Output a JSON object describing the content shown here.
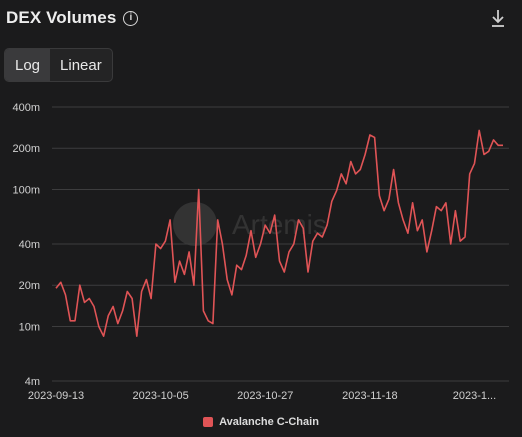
{
  "header": {
    "title": "DEX Volumes",
    "info_icon": "info-circle-icon",
    "download_icon": "download-icon"
  },
  "scale_toggle": {
    "options": [
      "Log",
      "Linear"
    ],
    "selected": "Log"
  },
  "colors": {
    "series": "#e05456",
    "background": "#1b1b1c",
    "grid": "#3d3d3e"
  },
  "chart_data": {
    "type": "line",
    "scale": "log",
    "ylim": [
      4,
      400
    ],
    "y_ticks": [
      {
        "value": 4,
        "label": "4m"
      },
      {
        "value": 10,
        "label": "10m"
      },
      {
        "value": 20,
        "label": "20m"
      },
      {
        "value": 40,
        "label": "40m"
      },
      {
        "value": 100,
        "label": "100m"
      },
      {
        "value": 200,
        "label": "200m"
      },
      {
        "value": 400,
        "label": "400m"
      }
    ],
    "x_ticks": [
      "2023-09-13",
      "2023-10-05",
      "2023-10-27",
      "2023-11-18",
      "2023-1..."
    ],
    "x_tick_index": [
      0,
      22,
      44,
      66,
      88
    ],
    "grid": true,
    "legend_position": "bottom-center",
    "series": [
      {
        "name": "Avalanche C-Chain",
        "values": [
          19,
          21,
          17,
          11,
          11,
          20,
          15,
          16,
          14,
          10,
          8.5,
          12,
          14,
          10.5,
          13,
          18,
          16,
          8.5,
          18,
          22,
          16,
          40,
          37,
          42,
          60,
          21,
          30,
          24,
          35,
          20,
          100,
          13,
          11,
          10.5,
          60,
          40,
          22,
          17,
          28,
          26,
          33,
          50,
          32,
          40,
          55,
          48,
          65,
          30,
          25,
          35,
          40,
          60,
          52,
          25,
          42,
          48,
          45,
          55,
          82,
          98,
          130,
          110,
          160,
          130,
          140,
          180,
          250,
          240,
          90,
          70,
          85,
          140,
          80,
          60,
          48,
          80,
          50,
          60,
          35,
          50,
          75,
          70,
          80,
          40,
          70,
          42,
          45,
          130,
          155,
          270,
          180,
          190,
          230,
          210,
          210
        ]
      }
    ]
  },
  "watermark": "Artemis"
}
